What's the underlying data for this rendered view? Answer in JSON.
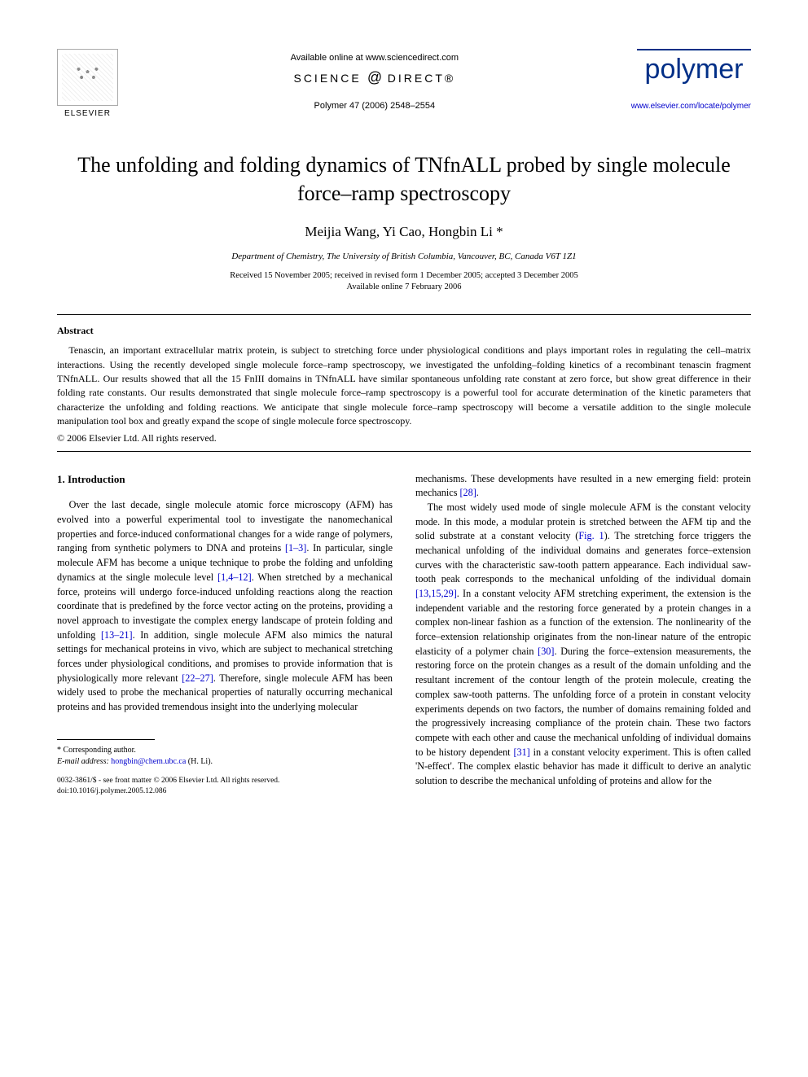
{
  "header": {
    "publisher": "ELSEVIER",
    "available_online": "Available online at www.sciencedirect.com",
    "sciencedirect": "SCIENCE",
    "sciencedirect_at": "@",
    "sciencedirect_suffix": "DIRECT®",
    "journal_ref": "Polymer 47 (2006) 2548–2554",
    "journal_logo": "polymer",
    "journal_url": "www.elsevier.com/locate/polymer"
  },
  "article": {
    "title": "The unfolding and folding dynamics of TNfnALL probed by single molecule force–ramp spectroscopy",
    "authors": "Meijia Wang, Yi Cao, Hongbin Li *",
    "affiliation": "Department of Chemistry, The University of British Columbia, Vancouver, BC, Canada V6T 1Z1",
    "dates": "Received 15 November 2005; received in revised form 1 December 2005; accepted 3 December 2005",
    "available_date": "Available online 7 February 2006"
  },
  "abstract": {
    "heading": "Abstract",
    "text": "Tenascin, an important extracellular matrix protein, is subject to stretching force under physiological conditions and plays important roles in regulating the cell–matrix interactions. Using the recently developed single molecule force–ramp spectroscopy, we investigated the unfolding–folding kinetics of a recombinant tenascin fragment TNfnALL. Our results showed that all the 15 FnIII domains in TNfnALL have similar spontaneous unfolding rate constant at zero force, but show great difference in their folding rate constants. Our results demonstrated that single molecule force–ramp spectroscopy is a powerful tool for accurate determination of the kinetic parameters that characterize the unfolding and folding reactions. We anticipate that single molecule force–ramp spectroscopy will become a versatile addition to the single molecule manipulation tool box and greatly expand the scope of single molecule force spectroscopy.",
    "copyright": "© 2006 Elsevier Ltd. All rights reserved."
  },
  "body": {
    "section_heading": "1. Introduction",
    "col1_para1_pre": "Over the last decade, single molecule atomic force microscopy (AFM) has evolved into a powerful experimental tool to investigate the nanomechanical properties and force-induced conformational changes for a wide range of polymers, ranging from synthetic polymers to DNA and proteins ",
    "ref_1_3": "[1–3]",
    "col1_para1_mid1": ". In particular, single molecule AFM has become a unique technique to probe the folding and unfolding dynamics at the single molecule level ",
    "ref_1_4_12": "[1,4–12]",
    "col1_para1_mid2": ". When stretched by a mechanical force, proteins will undergo force-induced unfolding reactions along the reaction coordinate that is predefined by the force vector acting on the proteins, providing a novel approach to investigate the complex energy landscape of protein folding and unfolding ",
    "ref_13_21": "[13–21]",
    "col1_para1_mid3": ". In addition, single molecule AFM also mimics the natural settings for mechanical proteins in vivo, which are subject to mechanical stretching forces under physiological conditions, and promises to provide information that is physiologically more relevant ",
    "ref_22_27": "[22–27]",
    "col1_para1_end": ". Therefore, single molecule AFM has been widely used to probe the mechanical properties of naturally occurring mechanical proteins and has provided tremendous insight into the underlying molecular",
    "col2_para1_pre": "mechanisms. These developments have resulted in a new emerging field: protein mechanics ",
    "ref_28": "[28]",
    "col2_para1_end": ".",
    "col2_para2_pre": "The most widely used mode of single molecule AFM is the constant velocity mode. In this mode, a modular protein is stretched between the AFM tip and the solid substrate at a constant velocity (",
    "fig1": "Fig. 1",
    "col2_para2_mid1": "). The stretching force triggers the mechanical unfolding of the individual domains and generates force–extension curves with the characteristic saw-tooth pattern appearance. Each individual saw-tooth peak corresponds to the mechanical unfolding of the individual domain ",
    "ref_13_15_29": "[13,15,29]",
    "col2_para2_mid2": ". In a constant velocity AFM stretching experiment, the extension is the independent variable and the restoring force generated by a protein changes in a complex non-linear fashion as a function of the extension. The nonlinearity of the force–extension relationship originates from the non-linear nature of the entropic elasticity of a polymer chain ",
    "ref_30": "[30]",
    "col2_para2_mid3": ". During the force–extension measurements, the restoring force on the protein changes as a result of the domain unfolding and the resultant increment of the contour length of the protein molecule, creating the complex saw-tooth patterns. The unfolding force of a protein in constant velocity experiments depends on two factors, the number of domains remaining folded and the progressively increasing compliance of the protein chain. These two factors compete with each other and cause the mechanical unfolding of individual domains to be history dependent ",
    "ref_31": "[31]",
    "col2_para2_end": " in a constant velocity experiment. This is often called 'N-effect'. The complex elastic behavior has made it difficult to derive an analytic solution to describe the mechanical unfolding of proteins and allow for the"
  },
  "footnote": {
    "corresponding": "* Corresponding author.",
    "email_label": "E-mail address:",
    "email": "hongbin@chem.ubc.ca",
    "email_suffix": "(H. Li).",
    "issn": "0032-3861/$ - see front matter © 2006 Elsevier Ltd. All rights reserved.",
    "doi": "doi:10.1016/j.polymer.2005.12.086"
  },
  "colors": {
    "link": "#0000cc",
    "polymer_brand": "#002f87",
    "text": "#000000",
    "background": "#ffffff"
  }
}
